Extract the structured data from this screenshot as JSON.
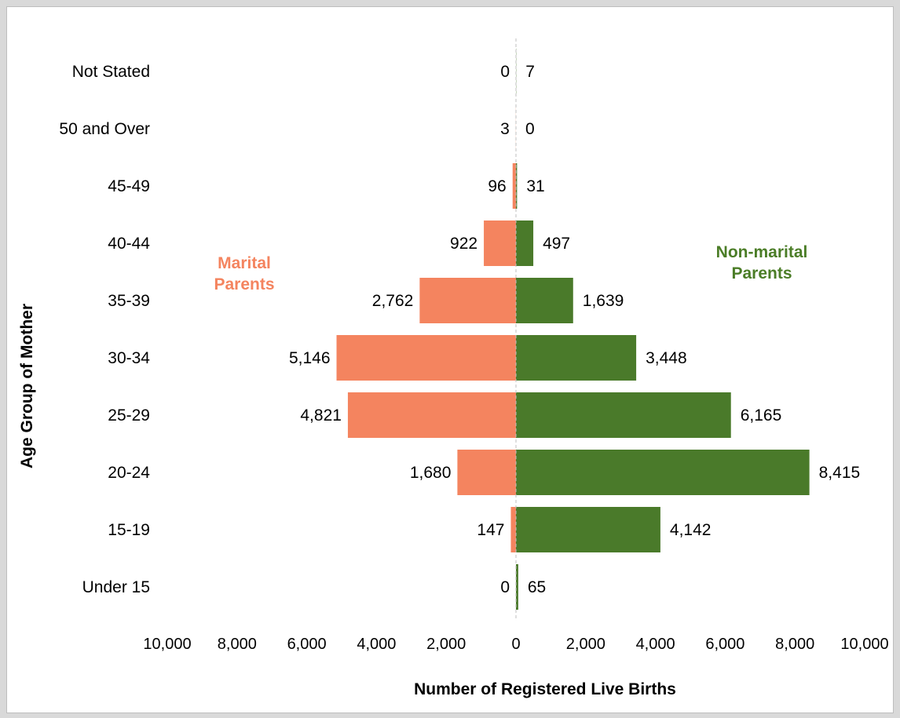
{
  "chart_data": {
    "type": "bar",
    "orientation": "horizontal",
    "layout": "population-pyramid",
    "title": "",
    "xlabel": "Number of Registered Live Births",
    "ylabel": "Age Group of Mother",
    "categories": [
      "Under 15",
      "15-19",
      "20-24",
      "25-29",
      "30-34",
      "35-39",
      "40-44",
      "45-49",
      "50 and Over",
      "Not Stated"
    ],
    "series": [
      {
        "name": "Marital Parents",
        "side": "left",
        "color": "#f4845f",
        "label_color": "#f4845f",
        "values": [
          0,
          147,
          1680,
          4821,
          5146,
          2762,
          922,
          96,
          3,
          0
        ],
        "value_labels": [
          "0",
          "147",
          "1,680",
          "4,821",
          "5,146",
          "2,762",
          "922",
          "96",
          "3",
          "0"
        ]
      },
      {
        "name": "Non-marital Parents",
        "side": "right",
        "color": "#4a7a2a",
        "label_color": "#4b7d27",
        "values": [
          65,
          4142,
          8415,
          6165,
          3448,
          1639,
          497,
          31,
          0,
          7
        ],
        "value_labels": [
          "65",
          "4,142",
          "8,415",
          "6,165",
          "3,448",
          "1,639",
          "497",
          "31",
          "0",
          "7"
        ]
      }
    ],
    "xlim": [
      -10000,
      10000
    ],
    "x_ticks": [
      -10000,
      -8000,
      -6000,
      -4000,
      -2000,
      0,
      2000,
      4000,
      6000,
      8000,
      10000
    ],
    "x_tick_labels": [
      "10,000",
      "8,000",
      "6,000",
      "4,000",
      "2,000",
      "0",
      "2,000",
      "4,000",
      "6,000",
      "8,000",
      "10,000"
    ],
    "series_label_lines": {
      "left": [
        "Marital",
        "Parents"
      ],
      "right": [
        "Non-marital",
        "Parents"
      ]
    },
    "grid": false,
    "legend": "none"
  }
}
